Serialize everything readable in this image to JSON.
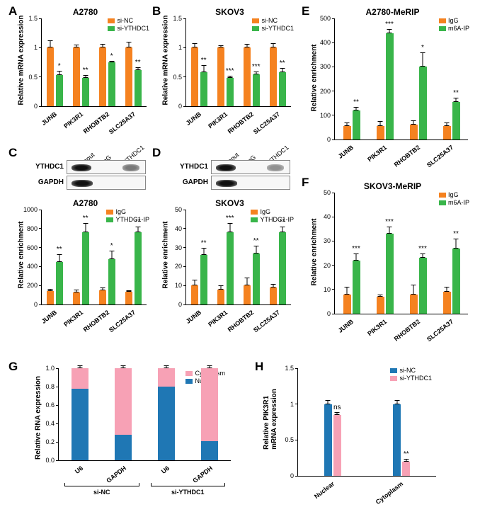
{
  "colors": {
    "orange": "#f58220",
    "green": "#39b54a",
    "blue": "#1f77b4",
    "pink": "#f7a1b5",
    "text": "#000000",
    "bg": "#ffffff"
  },
  "panels": {
    "A": {
      "title": "A2780",
      "type": "bar",
      "ylabel": "Relative mRNA expression",
      "ylim": [
        0,
        1.5
      ],
      "yticks": [
        0,
        0.5,
        1.0,
        1.5
      ],
      "legend": [
        {
          "c": "orange",
          "t": "si-NC"
        },
        {
          "c": "green",
          "t": "si-YTHDC1"
        }
      ],
      "cats": [
        "JUNB",
        "PIK3R1",
        "RHOBTB2",
        "SLC25A37"
      ],
      "series": [
        {
          "c": "orange",
          "v": [
            1.0,
            1.0,
            1.0,
            1.0
          ],
          "e": [
            0.13,
            0.05,
            0.07,
            0.1
          ]
        },
        {
          "c": "green",
          "v": [
            0.53,
            0.49,
            0.75,
            0.62
          ],
          "e": [
            0.08,
            0.04,
            0.03,
            0.05
          ]
        }
      ],
      "sig": [
        "*",
        "**",
        "*",
        "**"
      ]
    },
    "B": {
      "title": "SKOV3",
      "type": "bar",
      "ylabel": "Relative mRNA expression",
      "ylim": [
        0,
        1.5
      ],
      "yticks": [
        0,
        0.5,
        1.0,
        1.5
      ],
      "legend": [
        {
          "c": "orange",
          "t": "si-NC"
        },
        {
          "c": "green",
          "t": "si-YTHDC1"
        }
      ],
      "cats": [
        "JUNB",
        "PIK3R1",
        "RHOBTB2",
        "SLC25A37"
      ],
      "series": [
        {
          "c": "orange",
          "v": [
            1.0,
            1.0,
            1.0,
            1.0
          ],
          "e": [
            0.08,
            0.04,
            0.06,
            0.08
          ]
        },
        {
          "c": "green",
          "v": [
            0.58,
            0.48,
            0.55,
            0.58
          ],
          "e": [
            0.12,
            0.04,
            0.04,
            0.07
          ]
        }
      ],
      "sig": [
        "**",
        "***",
        "***",
        "**"
      ]
    },
    "C": {
      "blot": {
        "lanes": [
          "Input",
          "IgG",
          "YTHDC1"
        ],
        "rows": [
          "YTHDC1",
          "GAPDH"
        ],
        "bands": [
          [
            1,
            0,
            0.5
          ],
          [
            1,
            0,
            0
          ]
        ]
      },
      "title": "A2780",
      "type": "bar",
      "ylabel": "Relative enrichment",
      "ylim": [
        0,
        1000
      ],
      "yticks": [
        0,
        200,
        400,
        600,
        800,
        1000
      ],
      "legend": [
        {
          "c": "orange",
          "t": "IgG"
        },
        {
          "c": "green",
          "t": "YTHDC1-IP"
        }
      ],
      "cats": [
        "JUNB",
        "PIK3R1",
        "RHOBTB2",
        "SLC25A37"
      ],
      "series": [
        {
          "c": "orange",
          "v": [
            140,
            130,
            150,
            135
          ],
          "e": [
            25,
            30,
            30,
            15
          ]
        },
        {
          "c": "green",
          "v": [
            450,
            760,
            480,
            760
          ],
          "e": [
            80,
            100,
            90,
            60
          ]
        }
      ],
      "sig": [
        "**",
        "**",
        "*",
        "**"
      ]
    },
    "D": {
      "blot": {
        "lanes": [
          "Input",
          "IgG",
          "YTHDC1"
        ],
        "rows": [
          "YTHDC1",
          "GAPDH"
        ],
        "bands": [
          [
            1,
            0,
            0.4
          ],
          [
            1,
            0,
            0
          ]
        ]
      },
      "title": "SKOV3",
      "type": "bar",
      "ylabel": "Relative enrichment",
      "ylim": [
        0,
        50
      ],
      "yticks": [
        0,
        10,
        20,
        30,
        40,
        50
      ],
      "legend": [
        {
          "c": "orange",
          "t": "IgG"
        },
        {
          "c": "green",
          "t": "YTHDC1-IP"
        }
      ],
      "cats": [
        "JUNB",
        "PIK3R1",
        "RHOBTB2",
        "SLC25A37"
      ],
      "series": [
        {
          "c": "orange",
          "v": [
            10,
            8,
            10,
            9
          ],
          "e": [
            3,
            2,
            4,
            2
          ]
        },
        {
          "c": "green",
          "v": [
            26,
            38,
            27,
            38
          ],
          "e": [
            4,
            5,
            4,
            3
          ]
        }
      ],
      "sig": [
        "**",
        "***",
        "**",
        "**"
      ]
    },
    "E": {
      "title": "A2780-MeRIP",
      "type": "bar",
      "ylabel": "Relative enrichment",
      "ylim": [
        0,
        500
      ],
      "yticks": [
        0,
        100,
        200,
        300,
        400,
        500
      ],
      "legend": [
        {
          "c": "orange",
          "t": "IgG"
        },
        {
          "c": "green",
          "t": "m6A-IP"
        }
      ],
      "cats": [
        "JUNB",
        "PIK3R1",
        "RHOBTB2",
        "SLC25A37"
      ],
      "series": [
        {
          "c": "orange",
          "v": [
            55,
            55,
            60,
            55
          ],
          "e": [
            15,
            20,
            20,
            15
          ]
        },
        {
          "c": "green",
          "v": [
            120,
            440,
            300,
            155
          ],
          "e": [
            15,
            15,
            60,
            18
          ]
        }
      ],
      "sig": [
        "**",
        "***",
        "*",
        "**"
      ]
    },
    "F": {
      "title": "SKOV3-MeRIP",
      "type": "bar",
      "ylabel": "Relative enrichment",
      "ylim": [
        0,
        50
      ],
      "yticks": [
        0,
        10,
        20,
        30,
        40,
        50
      ],
      "legend": [
        {
          "c": "orange",
          "t": "IgG"
        },
        {
          "c": "green",
          "t": "m6A-IP"
        }
      ],
      "cats": [
        "JUNB",
        "PIK3R1",
        "RHOBTB2",
        "SLC25A37"
      ],
      "series": [
        {
          "c": "orange",
          "v": [
            8,
            7,
            8,
            9
          ],
          "e": [
            3,
            1,
            4,
            2
          ]
        },
        {
          "c": "green",
          "v": [
            22,
            33,
            23,
            27
          ],
          "e": [
            3,
            3,
            2,
            4
          ]
        }
      ],
      "sig": [
        "***",
        "***",
        "***",
        "**"
      ]
    },
    "G": {
      "type": "stacked",
      "ylabel": "Relative RNA expression",
      "ylim": [
        0,
        1.0
      ],
      "yticks": [
        0,
        0.2,
        0.4,
        0.6,
        0.8,
        1.0
      ],
      "legend": [
        {
          "c": "pink",
          "t": "Cytoplasm"
        },
        {
          "c": "blue",
          "t": "Nuclear"
        }
      ],
      "cats": [
        "U6",
        "GAPDH",
        "U6",
        "GAPDH"
      ],
      "groups": [
        "si-NC",
        "si-YTHDC1"
      ],
      "nuclear": [
        0.78,
        0.28,
        0.8,
        0.21
      ],
      "cytoplasm": [
        0.22,
        0.72,
        0.2,
        0.79
      ],
      "err": [
        0.03,
        0.03,
        0.03,
        0.03
      ]
    },
    "H": {
      "type": "bar",
      "ylabel": "Relative PIK3R1\nmRNA expression",
      "ylim": [
        0,
        1.5
      ],
      "yticks": [
        0,
        0.5,
        1.0,
        1.5
      ],
      "legend": [
        {
          "c": "blue",
          "t": "si-NC"
        },
        {
          "c": "pink",
          "t": "si-YTHDC1"
        }
      ],
      "cats": [
        "Nuclear",
        "Cytoplasm"
      ],
      "series": [
        {
          "c": "blue",
          "v": [
            1.0,
            1.0
          ],
          "e": [
            0.06,
            0.06
          ]
        },
        {
          "c": "pink",
          "v": [
            0.85,
            0.2
          ],
          "e": [
            0.04,
            0.04
          ]
        }
      ],
      "sig": [
        "ns",
        "**"
      ]
    }
  }
}
